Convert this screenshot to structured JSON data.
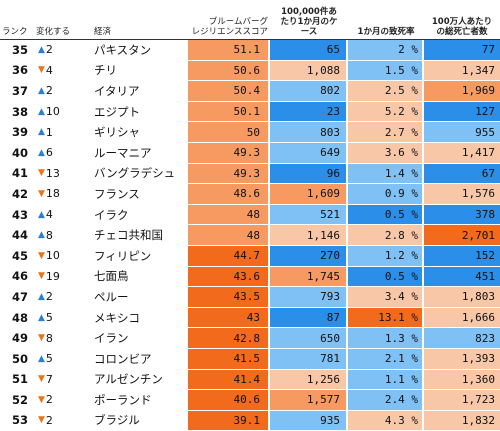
{
  "headers": {
    "rank": "ランク",
    "change": "変化する",
    "economy": "経済",
    "score": "ブルームバーグ\nレジリエンススコア",
    "cases": "100,000件あ\nたり1か月のケ\nース",
    "fatality": "1か月の致死率",
    "deaths": "100万人あたり\nの総死亡者数"
  },
  "colors": {
    "up_arrow": "#2a7fd4",
    "down_arrow": "#e8751a",
    "blue_deep": "#2b8fea",
    "blue_light": "#7fc0f5",
    "peach_light": "#f8c7a8",
    "orange_mid": "#f79a62",
    "orange_deep": "#f26a1b"
  },
  "rows": [
    {
      "rank": "35",
      "dir": "up",
      "chg": "2",
      "economy": "パキスタン",
      "score": "51.1",
      "cases": "65",
      "fatality": "2 %",
      "deaths": "77",
      "c_score": "orange_mid",
      "c_cases": "blue_deep",
      "c_fatal": "blue_light",
      "c_deaths": "blue_deep"
    },
    {
      "rank": "36",
      "dir": "down",
      "chg": "4",
      "economy": "チリ",
      "score": "50.6",
      "cases": "1,088",
      "fatality": "1.5 %",
      "deaths": "1,347",
      "c_score": "orange_mid",
      "c_cases": "peach_light",
      "c_fatal": "blue_light",
      "c_deaths": "peach_light"
    },
    {
      "rank": "37",
      "dir": "up",
      "chg": "2",
      "economy": "イタリア",
      "score": "50.4",
      "cases": "802",
      "fatality": "2.5 %",
      "deaths": "1,969",
      "c_score": "orange_mid",
      "c_cases": "blue_light",
      "c_fatal": "peach_light",
      "c_deaths": "orange_mid"
    },
    {
      "rank": "38",
      "dir": "up",
      "chg": "10",
      "economy": "エジプト",
      "score": "50.1",
      "cases": "23",
      "fatality": "5.2 %",
      "deaths": "127",
      "c_score": "orange_mid",
      "c_cases": "blue_deep",
      "c_fatal": "peach_light",
      "c_deaths": "blue_deep"
    },
    {
      "rank": "39",
      "dir": "up",
      "chg": "1",
      "economy": "ギリシャ",
      "score": "50",
      "cases": "803",
      "fatality": "2.7 %",
      "deaths": "955",
      "c_score": "orange_mid",
      "c_cases": "blue_light",
      "c_fatal": "peach_light",
      "c_deaths": "blue_light"
    },
    {
      "rank": "40",
      "dir": "up",
      "chg": "6",
      "economy": "ルーマニア",
      "score": "49.3",
      "cases": "649",
      "fatality": "3.6 %",
      "deaths": "1,417",
      "c_score": "orange_mid",
      "c_cases": "blue_light",
      "c_fatal": "peach_light",
      "c_deaths": "peach_light"
    },
    {
      "rank": "41",
      "dir": "down",
      "chg": "13",
      "economy": "バングラデシュ",
      "score": "49.3",
      "cases": "96",
      "fatality": "1.4 %",
      "deaths": "67",
      "c_score": "orange_mid",
      "c_cases": "blue_deep",
      "c_fatal": "blue_light",
      "c_deaths": "blue_deep"
    },
    {
      "rank": "42",
      "dir": "down",
      "chg": "18",
      "economy": "フランス",
      "score": "48.6",
      "cases": "1,609",
      "fatality": "0.9 %",
      "deaths": "1,576",
      "c_score": "orange_mid",
      "c_cases": "orange_mid",
      "c_fatal": "blue_light",
      "c_deaths": "peach_light"
    },
    {
      "rank": "43",
      "dir": "up",
      "chg": "4",
      "economy": "イラク",
      "score": "48",
      "cases": "521",
      "fatality": "0.5 %",
      "deaths": "378",
      "c_score": "orange_mid",
      "c_cases": "blue_light",
      "c_fatal": "blue_deep",
      "c_deaths": "blue_deep"
    },
    {
      "rank": "44",
      "dir": "up",
      "chg": "8",
      "economy": "チェコ共和国",
      "score": "48",
      "cases": "1,146",
      "fatality": "2.8 %",
      "deaths": "2,701",
      "c_score": "orange_mid",
      "c_cases": "peach_light",
      "c_fatal": "peach_light",
      "c_deaths": "orange_deep"
    },
    {
      "rank": "45",
      "dir": "down",
      "chg": "10",
      "economy": "フィリピン",
      "score": "44.7",
      "cases": "270",
      "fatality": "1.2 %",
      "deaths": "152",
      "c_score": "orange_deep",
      "c_cases": "blue_deep",
      "c_fatal": "blue_light",
      "c_deaths": "blue_deep"
    },
    {
      "rank": "46",
      "dir": "down",
      "chg": "19",
      "economy": "七面鳥",
      "score": "43.6",
      "cases": "1,745",
      "fatality": "0.5 %",
      "deaths": "451",
      "c_score": "orange_deep",
      "c_cases": "orange_mid",
      "c_fatal": "blue_deep",
      "c_deaths": "blue_deep"
    },
    {
      "rank": "47",
      "dir": "up",
      "chg": "2",
      "economy": "ペルー",
      "score": "43.5",
      "cases": "793",
      "fatality": "3.4 %",
      "deaths": "1,803",
      "c_score": "orange_deep",
      "c_cases": "blue_light",
      "c_fatal": "peach_light",
      "c_deaths": "peach_light"
    },
    {
      "rank": "48",
      "dir": "up",
      "chg": "5",
      "economy": "メキシコ",
      "score": "43",
      "cases": "87",
      "fatality": "13.1 %",
      "deaths": "1,666",
      "c_score": "orange_deep",
      "c_cases": "blue_deep",
      "c_fatal": "orange_deep",
      "c_deaths": "peach_light"
    },
    {
      "rank": "49",
      "dir": "down",
      "chg": "8",
      "economy": "イラン",
      "score": "42.8",
      "cases": "650",
      "fatality": "1.3 %",
      "deaths": "823",
      "c_score": "orange_deep",
      "c_cases": "blue_light",
      "c_fatal": "blue_light",
      "c_deaths": "blue_light"
    },
    {
      "rank": "50",
      "dir": "up",
      "chg": "5",
      "economy": "コロンビア",
      "score": "41.5",
      "cases": "781",
      "fatality": "2.1 %",
      "deaths": "1,393",
      "c_score": "orange_deep",
      "c_cases": "blue_light",
      "c_fatal": "blue_light",
      "c_deaths": "peach_light"
    },
    {
      "rank": "51",
      "dir": "down",
      "chg": "7",
      "economy": "アルゼンチン",
      "score": "41.4",
      "cases": "1,256",
      "fatality": "1.1 %",
      "deaths": "1,360",
      "c_score": "orange_deep",
      "c_cases": "peach_light",
      "c_fatal": "blue_light",
      "c_deaths": "peach_light"
    },
    {
      "rank": "52",
      "dir": "down",
      "chg": "2",
      "economy": "ポーランド",
      "score": "40.6",
      "cases": "1,577",
      "fatality": "2.4 %",
      "deaths": "1,723",
      "c_score": "orange_deep",
      "c_cases": "orange_mid",
      "c_fatal": "blue_light",
      "c_deaths": "peach_light"
    },
    {
      "rank": "53",
      "dir": "down",
      "chg": "2",
      "economy": "ブラジル",
      "score": "39.1",
      "cases": "935",
      "fatality": "4.3 %",
      "deaths": "1,832",
      "c_score": "orange_deep",
      "c_cases": "blue_light",
      "c_fatal": "peach_light",
      "c_deaths": "peach_light"
    }
  ]
}
